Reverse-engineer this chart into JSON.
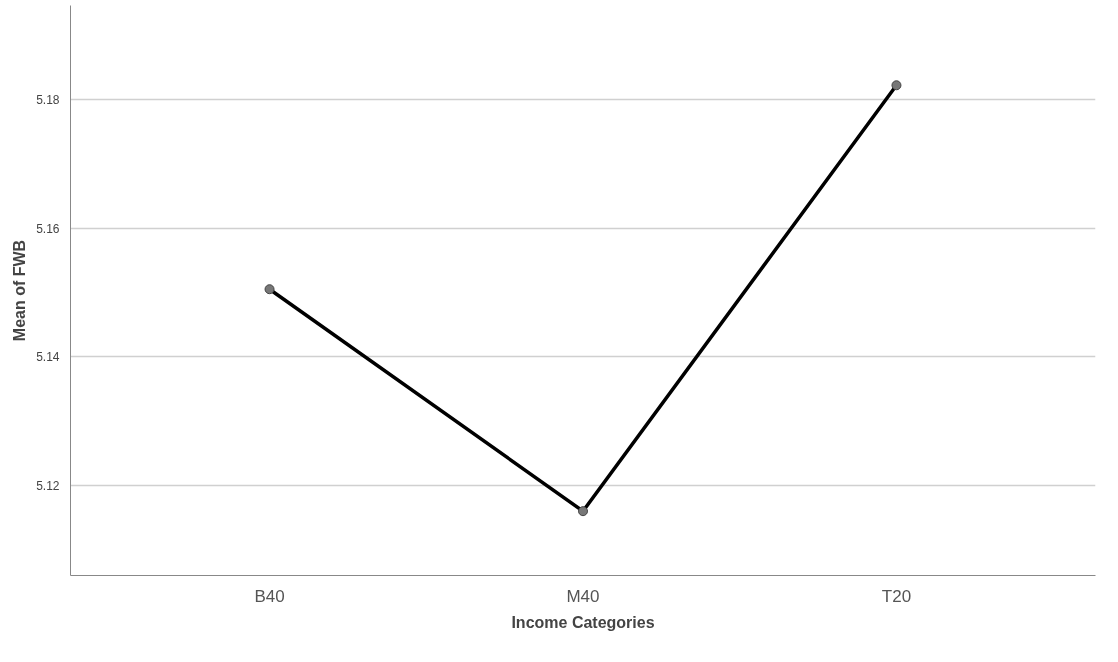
{
  "chart_data": {
    "type": "line",
    "xlabel": "Income Categories",
    "ylabel": "Mean of FWB",
    "categories": [
      "B40",
      "M40",
      "T20"
    ],
    "series": [
      {
        "color": "#000000",
        "values": [
          5.1505,
          5.116,
          5.1822
        ]
      }
    ],
    "ylim": [
      5.106,
      5.1946
    ],
    "yticks": [
      5.12,
      5.14,
      5.16,
      5.18
    ],
    "grid": "y",
    "marker": "circle",
    "line_style": "solid"
  }
}
